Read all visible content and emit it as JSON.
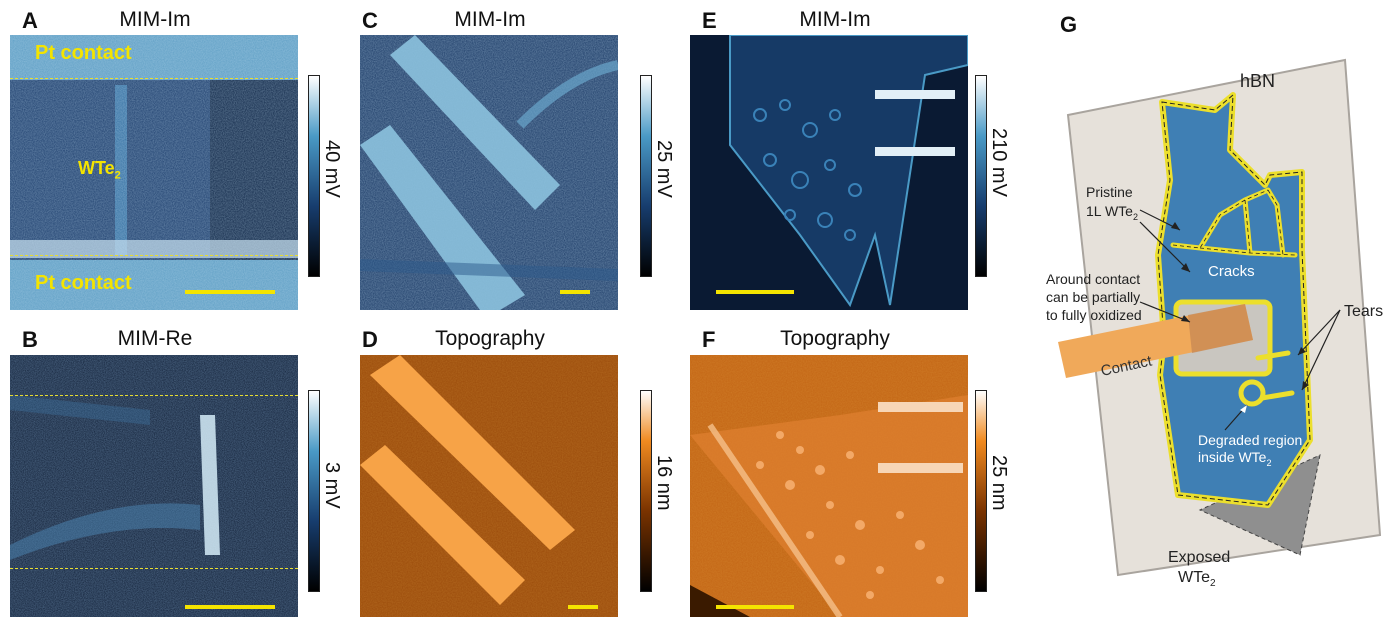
{
  "panels": {
    "A": {
      "letter": "A",
      "title": "MIM-Im",
      "colorbar": "40 mV",
      "top_label": "Pt contact",
      "bottom_label": "Pt contact",
      "material": "WTe",
      "material_sub": "2"
    },
    "B": {
      "letter": "B",
      "title": "MIM-Re",
      "colorbar": "3 mV"
    },
    "C": {
      "letter": "C",
      "title": "MIM-Im",
      "colorbar": "25 mV"
    },
    "D": {
      "letter": "D",
      "title": "Topography",
      "colorbar": "16 nm"
    },
    "E": {
      "letter": "E",
      "title": "MIM-Im",
      "colorbar": "210 mV"
    },
    "F": {
      "letter": "F",
      "title": "Topography",
      "colorbar": "25 nm"
    },
    "G": {
      "letter": "G",
      "hbn": "hBN",
      "pristine_1": "Pristine",
      "pristine_2": "1L WTe",
      "pristine_sub": "2",
      "cracks": "Cracks",
      "around_1": "Around contact",
      "around_2": "can be partially",
      "around_3": "to fully oxidized",
      "tears": "Tears",
      "contact": "Contact",
      "degraded_1": "Degraded region",
      "degraded_2": "inside WTe",
      "degraded_sub": "2",
      "exposed_1": "Exposed",
      "exposed_2": "WTe",
      "exposed_sub": "2"
    }
  },
  "colors": {
    "accent_yellow": "#f4e400",
    "mim_dark": "#0b1a33",
    "mim_light": "#7fb8d8",
    "topo_dark": "#2a1200",
    "topo_light": "#f6a24a",
    "wte2_blue": "#3f7fb4",
    "hbn_fill": "#e6e1da",
    "contact_orange": "#f0a95a",
    "exposed_gray": "#8f8f8f"
  }
}
